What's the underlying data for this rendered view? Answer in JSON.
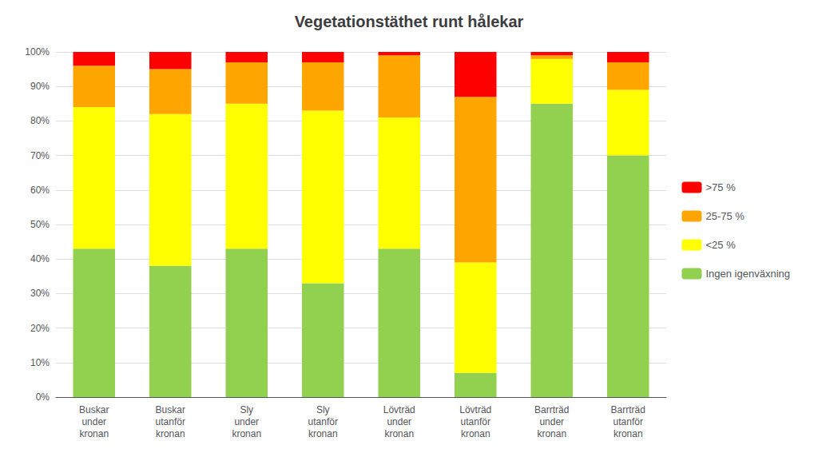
{
  "chart_data": {
    "type": "bar",
    "title": "Vegetationstäthet runt hålekar",
    "categories": [
      "Buskar\nunder\nkronan",
      "Buskar\nutanför\nkronan",
      "Sly\nunder\nkronan",
      "Sly\nutanför\nkronan",
      "Lövträd\nunder\nkronan",
      "Lövträd\nutanför\nkronan",
      "Barrträd\nunder\nkronan",
      "Barrträd\nutanför\nkronan"
    ],
    "series": [
      {
        "name": "Ingen igenväxning",
        "color": "#92D050",
        "values": [
          43,
          38,
          43,
          33,
          43,
          7,
          85,
          70
        ]
      },
      {
        "name": "<25 %",
        "color": "#FFFF00",
        "values": [
          41,
          44,
          42,
          50,
          38,
          32,
          13,
          19
        ]
      },
      {
        "name": "25-75 %",
        "color": "#FFA500",
        "values": [
          12,
          13,
          12,
          14,
          18,
          48,
          1,
          8
        ]
      },
      {
        "name": ">75 %",
        "color": "#FF0000",
        "values": [
          4,
          5,
          3,
          3,
          1,
          13,
          1,
          3
        ]
      }
    ],
    "stacked": true,
    "ylim": [
      0,
      100
    ],
    "yticks": [
      {
        "value": 0,
        "label": "0%"
      },
      {
        "value": 10,
        "label": "10%"
      },
      {
        "value": 20,
        "label": "20%"
      },
      {
        "value": 30,
        "label": "30%"
      },
      {
        "value": 40,
        "label": "40%"
      },
      {
        "value": 50,
        "label": "50%"
      },
      {
        "value": 60,
        "label": "60%"
      },
      {
        "value": 70,
        "label": "70%"
      },
      {
        "value": 80,
        "label": "80%"
      },
      {
        "value": 90,
        "label": "90%"
      },
      {
        "value": 100,
        "label": "100%"
      }
    ],
    "grid": true,
    "legend": "right"
  }
}
